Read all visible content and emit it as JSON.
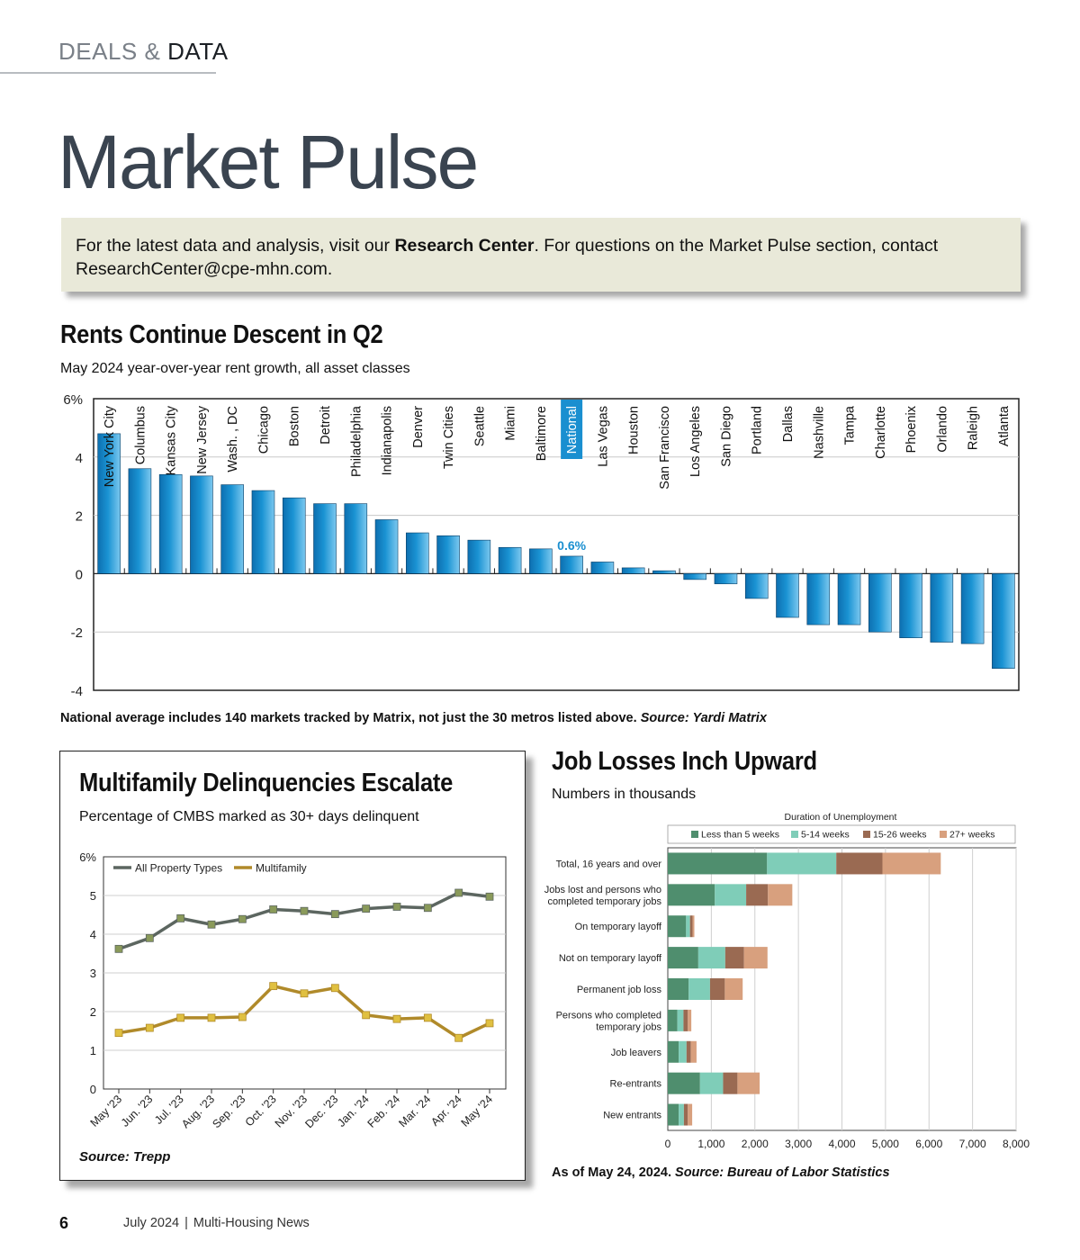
{
  "header": {
    "section_a": "DEALS",
    "section_amp": "&",
    "section_b": "DATA",
    "title": "Market Pulse"
  },
  "info": {
    "text1": "For the latest data and analysis, visit our ",
    "link": "Research Center",
    "text2": ". For questions on the Market Pulse section, contact ResearchCenter@cpe-mhn.com."
  },
  "rents": {
    "title": "Rents Continue Descent in Q2",
    "subtitle": "May 2024 year-over-year rent growth, all asset classes",
    "note": "National average includes 140 markets tracked by Matrix, not just the 30 metros listed above.",
    "source": "Source: Yardi Matrix"
  },
  "delinq": {
    "title": "Multifamily Delinquencies Escalate",
    "subtitle": "Percentage of CMBS marked as 30+ days delinquent",
    "source": "Source: Trepp"
  },
  "jobs": {
    "title": "Job Losses Inch Upward",
    "subtitle": "Numbers in thousands",
    "note": "As of May 24, 2024.",
    "source": "Source: Bureau of Labor Statistics"
  },
  "footer": {
    "page": "6",
    "date": "July 2024",
    "sep": "|",
    "publication": "Multi-Housing News"
  },
  "colors": {
    "bar_blue": "#1a93d3",
    "highlight": "#1a8fd0",
    "all_property": "#5c6660",
    "multifamily": "#b08a2a",
    "lt5": "#4f8e6e",
    "w5_14": "#7fcdb8",
    "w15_26": "#9a6a52",
    "w27": "#d8a07e"
  },
  "chart_data": [
    {
      "type": "bar",
      "categories": [
        "New York City",
        "Columbus",
        "Kansas City",
        "New Jersey",
        "Wash. , DC",
        "Chicago",
        "Boston",
        "Detroit",
        "Philadelphia",
        "Indianapolis",
        "Denver",
        "Twin Cities",
        "Seattle",
        "Miami",
        "Baltimore",
        "National",
        "Las Vegas",
        "Houston",
        "San Francisco",
        "Los Angeles",
        "San Diego",
        "Portland",
        "Dallas",
        "Nashville",
        "Tampa",
        "Charlotte",
        "Phoenix",
        "Orlando",
        "Raleigh",
        "Atlanta"
      ],
      "values": [
        4.8,
        3.6,
        3.4,
        3.35,
        3.05,
        2.85,
        2.6,
        2.4,
        2.4,
        1.85,
        1.4,
        1.3,
        1.15,
        0.9,
        0.85,
        0.6,
        0.4,
        0.2,
        0.1,
        -0.2,
        -0.35,
        -0.85,
        -1.5,
        -1.75,
        -1.75,
        -2.0,
        -2.2,
        -2.35,
        -2.4,
        -3.25
      ],
      "highlight": "National",
      "highlight_label": "0.6%",
      "ylim": [
        -4,
        6
      ],
      "yticks": [
        "6%",
        "4",
        "2",
        "0",
        "-2",
        "-4"
      ],
      "ytick_values": [
        6,
        4,
        2,
        0,
        -2,
        -4
      ],
      "grid": true
    },
    {
      "type": "line",
      "categories": [
        "May '23",
        "Jun. '23",
        "Jul. '23",
        "Aug. '23",
        "Sep. '23",
        "Oct. '23",
        "Nov. '23",
        "Dec. '23",
        "Jan. '24",
        "Feb. '24",
        "Mar. '24",
        "Apr. '24",
        "May '24"
      ],
      "series": [
        {
          "name": "All Property Types",
          "values": [
            3.62,
            3.9,
            4.41,
            4.25,
            4.39,
            4.64,
            4.6,
            4.52,
            4.66,
            4.71,
            4.68,
            5.07,
            4.97
          ]
        },
        {
          "name": "Multifamily",
          "values": [
            1.45,
            1.58,
            1.84,
            1.84,
            1.86,
            2.66,
            2.47,
            2.61,
            1.91,
            1.81,
            1.84,
            1.32,
            1.7
          ]
        }
      ],
      "ylim": [
        0,
        6
      ],
      "yticks": [
        "6%",
        "5",
        "4",
        "3",
        "2",
        "1",
        "0"
      ],
      "ytick_values": [
        6,
        5,
        4,
        3,
        2,
        1,
        0
      ],
      "legend": "top-left",
      "grid": true
    },
    {
      "type": "bar",
      "orientation": "horizontal",
      "stacked": true,
      "legend_title": "Duration of Unemployment",
      "categories": [
        [
          "Total, 16 years and over"
        ],
        [
          "Jobs lost and persons who",
          "completed temporary jobs"
        ],
        [
          "On temporary layoff"
        ],
        [
          "Not on temporary layoff"
        ],
        [
          "Permanent job loss"
        ],
        [
          "Persons who completed",
          "temporary jobs"
        ],
        [
          "Job leavers"
        ],
        [
          "Re-entrants"
        ],
        [
          "New entrants"
        ]
      ],
      "series": [
        {
          "name": "Less than 5 weeks",
          "values": [
            2280,
            1080,
            420,
            700,
            480,
            220,
            250,
            740,
            250
          ]
        },
        {
          "name": "5-14 weeks",
          "values": [
            1590,
            720,
            90,
            620,
            490,
            140,
            180,
            530,
            120
          ]
        },
        {
          "name": "15-26 weeks",
          "values": [
            1060,
            500,
            60,
            430,
            340,
            100,
            100,
            330,
            90
          ]
        },
        {
          "name": "27+ weeks",
          "values": [
            1340,
            560,
            40,
            540,
            410,
            80,
            130,
            510,
            100
          ]
        }
      ],
      "xlim": [
        0,
        8000
      ],
      "xticks": [
        "0",
        "1,000",
        "2,000",
        "3,000",
        "4,000",
        "5,000",
        "6,000",
        "7,000",
        "8,000"
      ],
      "xtick_values": [
        0,
        1000,
        2000,
        3000,
        4000,
        5000,
        6000,
        7000,
        8000
      ],
      "legend": "top",
      "grid": true
    }
  ]
}
